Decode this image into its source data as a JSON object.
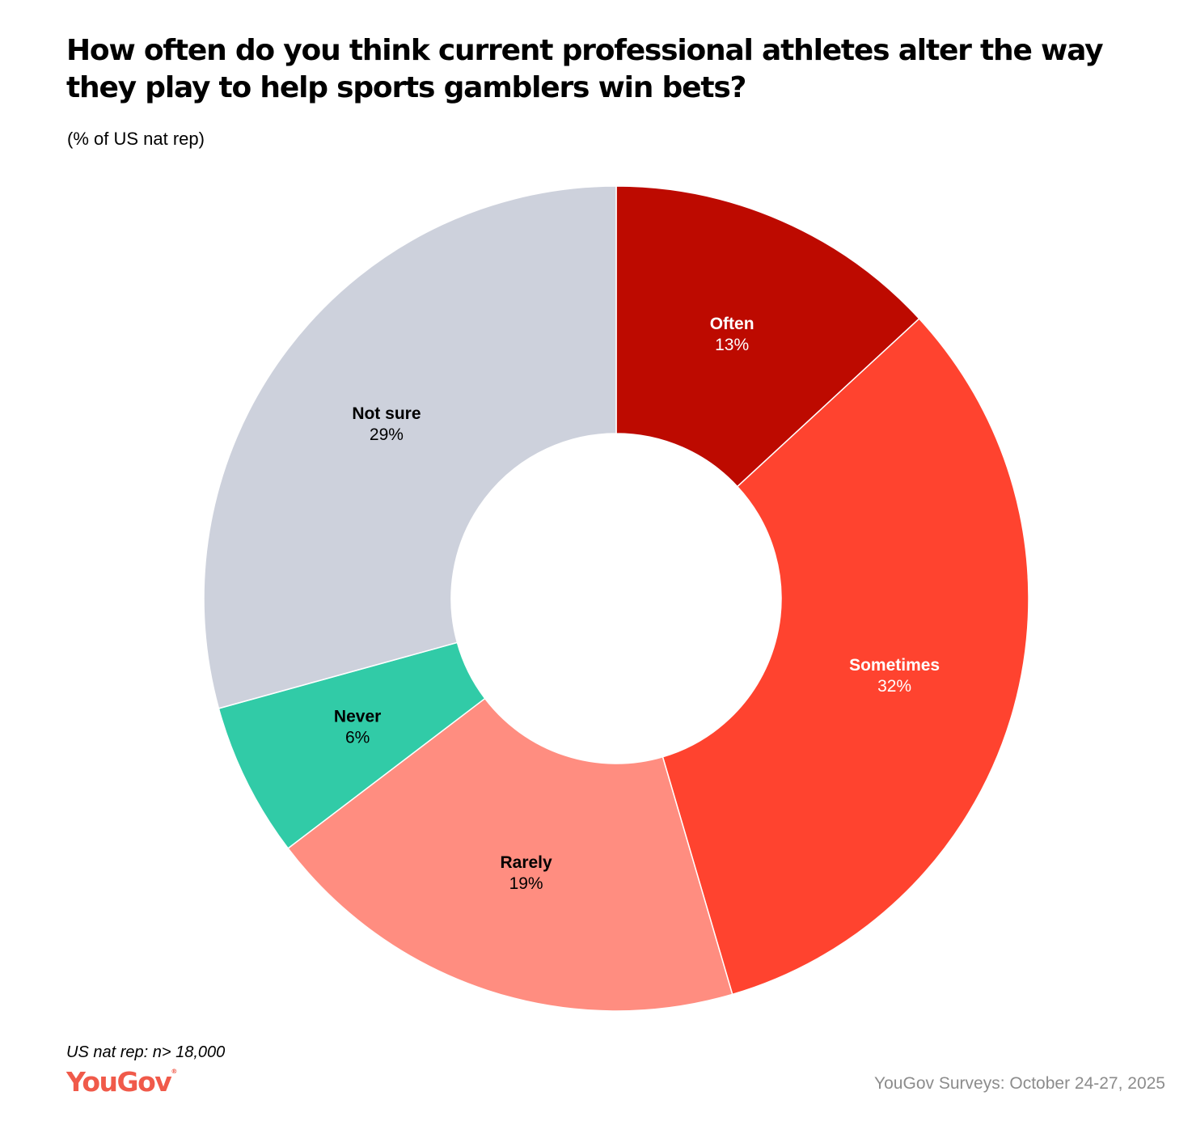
{
  "title": "How often do you think current professional athletes alter the way they play to help sports gamblers win bets?",
  "subtitle": "(% of US nat rep)",
  "footnote": "US nat rep: n> 18,000",
  "logo": "YouGov",
  "source": "YouGov Surveys: October 24-27, 2025",
  "chart_data": {
    "type": "pie",
    "donut": true,
    "start_angle": "12 o'clock",
    "direction": "clockwise",
    "slices": [
      {
        "label": "Often",
        "value": 13,
        "value_label": "13%",
        "color": "#bd0a00",
        "text_color": "#ffffff"
      },
      {
        "label": "Sometimes",
        "value": 32,
        "value_label": "32%",
        "color": "#ff432f",
        "text_color": "#ffffff"
      },
      {
        "label": "Rarely",
        "value": 19,
        "value_label": "19%",
        "color": "#ff8d80",
        "text_color": "#000000"
      },
      {
        "label": "Never",
        "value": 6,
        "value_label": "6%",
        "color": "#31cba7",
        "text_color": "#000000"
      },
      {
        "label": "Not sure",
        "value": 29,
        "value_label": "29%",
        "color": "#cdd1dc",
        "text_color": "#000000"
      }
    ]
  }
}
